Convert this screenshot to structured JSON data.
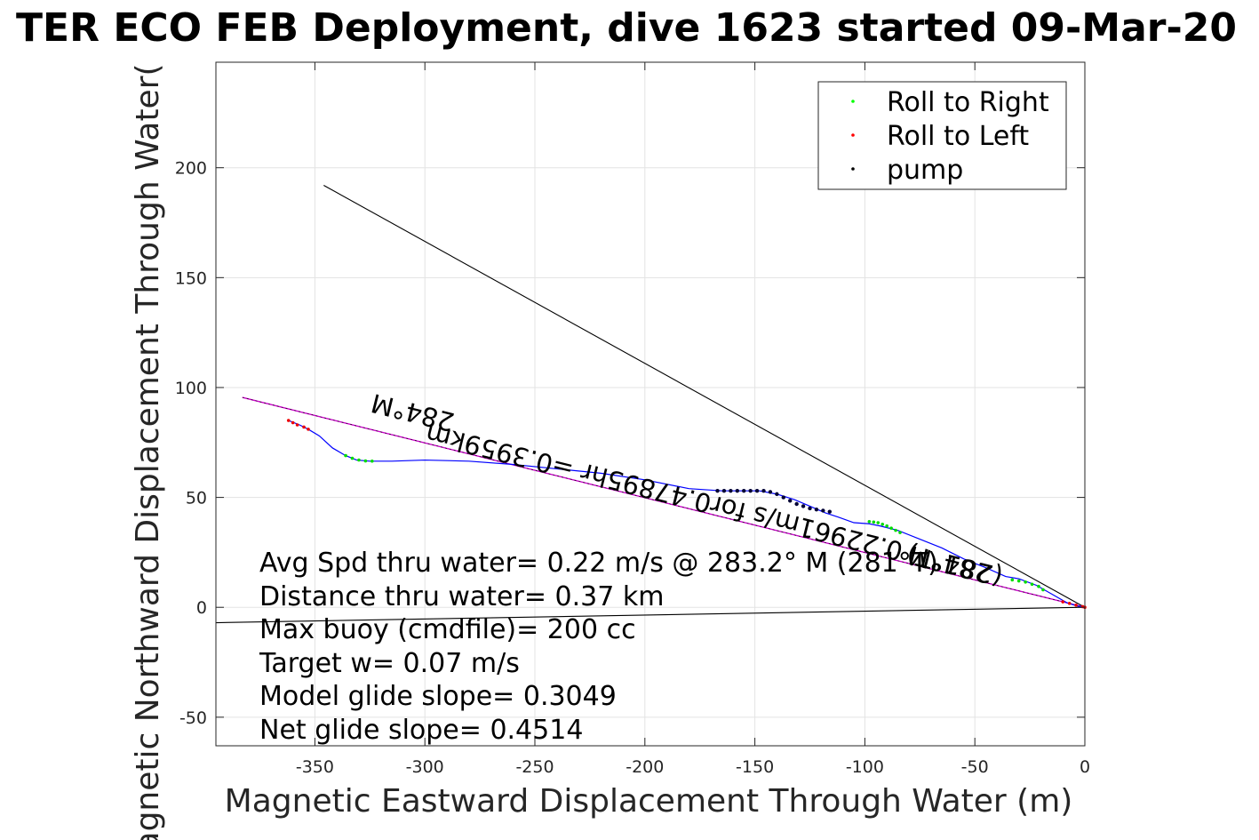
{
  "chart_data": {
    "type": "scatter",
    "title": "TER ECO FEB Deployment, dive 1623 started 09-Mar-20",
    "xlabel": "Magnetic Eastward Displacement Through Water (m)",
    "ylabel": "Magnetic Northward Displacement Through Water(",
    "xlim": [
      -395,
      0
    ],
    "ylim": [
      -63,
      248
    ],
    "xticks": [
      -350,
      -300,
      -250,
      -200,
      -150,
      -100,
      -50,
      0
    ],
    "yticks": [
      -50,
      0,
      50,
      100,
      150,
      200
    ],
    "grid": true,
    "legend_position": "top-right",
    "legend": [
      {
        "name": "Roll to Right",
        "color": "#00ff00"
      },
      {
        "name": "Roll to Left",
        "color": "#ff0000"
      },
      {
        "name": "pump",
        "color": "#000000"
      }
    ],
    "track": {
      "color": "#0000ff",
      "x": [
        0,
        -3,
        -8,
        -15,
        -22,
        -30,
        -36,
        -45,
        -55,
        -65,
        -75,
        -85,
        -93,
        -98,
        -105,
        -112,
        -118,
        -125,
        -132,
        -140,
        -148,
        -156,
        -165,
        -180,
        -200,
        -220,
        -240,
        -260,
        -280,
        -300,
        -315,
        -325,
        -331,
        -336,
        -342,
        -348,
        -353,
        -357,
        -362
      ],
      "y": [
        0,
        0.5,
        2,
        6,
        10,
        13,
        14,
        18,
        22,
        27,
        31,
        35,
        37,
        38,
        38.5,
        41,
        43,
        46,
        49,
        51.5,
        53,
        53,
        53,
        54,
        58,
        61,
        63,
        65,
        66.5,
        67,
        66.5,
        66.5,
        67,
        69,
        72.5,
        78,
        81,
        83,
        85
      ]
    },
    "roll_right_points": [
      {
        "x": [
          -98,
          -96,
          -94,
          -92,
          -90,
          -88,
          -86,
          -84
        ],
        "y": [
          39,
          38.8,
          38.5,
          37.8,
          37,
          36,
          35,
          34
        ]
      },
      {
        "x": [
          -33,
          -30,
          -27,
          -24,
          -21,
          -19
        ],
        "y": [
          12.5,
          12,
          11.5,
          10.5,
          9.5,
          8
        ]
      },
      {
        "x": [
          -336,
          -333,
          -330,
          -327,
          -324
        ],
        "y": [
          69,
          67.8,
          67,
          66.6,
          66.5
        ]
      }
    ],
    "roll_left_points": [
      {
        "x": [
          -362,
          -360,
          -358,
          -355,
          -353
        ],
        "y": [
          85,
          84,
          83,
          82,
          81
        ]
      },
      {
        "x": [
          -10,
          -7,
          -4,
          -1,
          0
        ],
        "y": [
          2.5,
          1.8,
          1,
          0.3,
          0
        ]
      }
    ],
    "pump_points": [
      {
        "x": [
          -167,
          -164,
          -161,
          -158,
          -155,
          -152,
          -149,
          -146,
          -143,
          -140,
          -137,
          -134,
          -131,
          -128,
          -125,
          -122,
          -119,
          -116
        ],
        "y": [
          53,
          53,
          53,
          53,
          53,
          53,
          53,
          53,
          52.5,
          51.5,
          50,
          48.5,
          47,
          46,
          45,
          44.5,
          44,
          43.5
        ]
      }
    ],
    "heading_lines": [
      {
        "color": "#000000",
        "x": [
          0,
          -346
        ],
        "y": [
          0,
          192
        ]
      },
      {
        "color": "#000000",
        "x": [
          0,
          -395
        ],
        "y": [
          0,
          -7
        ]
      },
      {
        "color": "#cc00cc",
        "x": [
          0,
          -383
        ],
        "y": [
          0,
          95.5
        ]
      }
    ],
    "rotated_labels": {
      "heading_main": "284°M",
      "speed_main": "0.22961m/s for0.47895hr =0.3959km",
      "heading_secondary": "284°M",
      "secondary_paren": "(281°T)"
    },
    "stats": [
      "Avg Spd thru water=  0.22 m/s @ 283.2° M (281°T)",
      "Distance thru water=  0.37 km",
      "Max buoy (cmdfile)= 200 cc",
      "Target w= 0.07 m/s",
      "Model glide slope= 0.3049",
      "Net glide slope= 0.4514"
    ]
  }
}
